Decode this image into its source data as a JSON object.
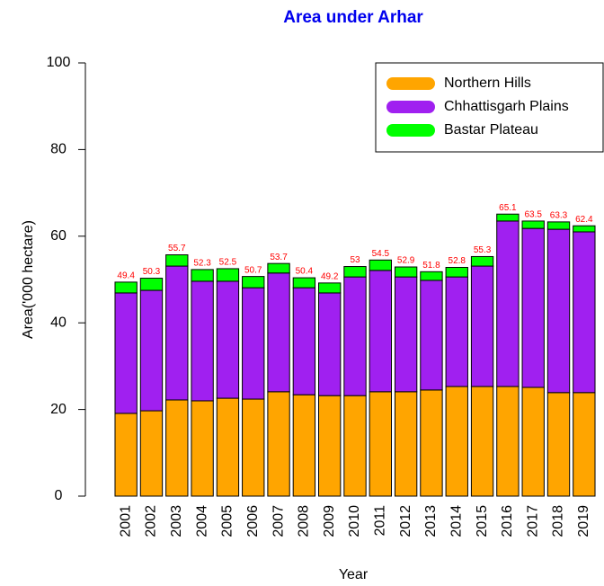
{
  "chart_data": {
    "type": "stacked-bar",
    "title": "Area under Arhar",
    "xlabel": "Year",
    "ylabel": "Area('000 hectare)",
    "categories": [
      "2001",
      "2002",
      "2003",
      "2004",
      "2005",
      "2006",
      "2007",
      "2008",
      "2009",
      "2010",
      "2011",
      "2012",
      "2013",
      "2014",
      "2015",
      "2016",
      "2017",
      "2018",
      "2019"
    ],
    "series": [
      {
        "name": "Northern Hills",
        "color": "#ffa500",
        "values": [
          19.1,
          19.7,
          22.2,
          22.0,
          22.6,
          22.4,
          24.1,
          23.4,
          23.2,
          23.2,
          24.1,
          24.1,
          24.5,
          25.3,
          25.3,
          25.3,
          25.1,
          23.9,
          23.9
        ]
      },
      {
        "name": "Chhattisgarh Plains",
        "color": "#a020f0",
        "values": [
          27.8,
          27.8,
          30.9,
          27.6,
          27.0,
          25.7,
          27.4,
          24.7,
          23.7,
          27.4,
          28.0,
          26.5,
          25.3,
          25.3,
          27.8,
          38.2,
          36.7,
          37.7,
          37.1
        ]
      },
      {
        "name": "Bastar Plateau",
        "color": "#00ff00",
        "values": [
          2.5,
          2.8,
          2.6,
          2.7,
          2.9,
          2.6,
          2.2,
          2.3,
          2.3,
          2.4,
          2.4,
          2.3,
          2.0,
          2.2,
          2.2,
          1.6,
          1.7,
          1.7,
          1.4
        ]
      }
    ],
    "totals": [
      49.4,
      50.3,
      55.7,
      52.3,
      52.5,
      50.7,
      53.7,
      50.4,
      49.2,
      53,
      54.5,
      52.9,
      51.8,
      52.8,
      55.3,
      65.1,
      63.5,
      63.3,
      62.4
    ],
    "ylim": [
      0,
      100
    ],
    "yticks": [
      0,
      20,
      40,
      60,
      80,
      100
    ],
    "legend": "topright"
  }
}
